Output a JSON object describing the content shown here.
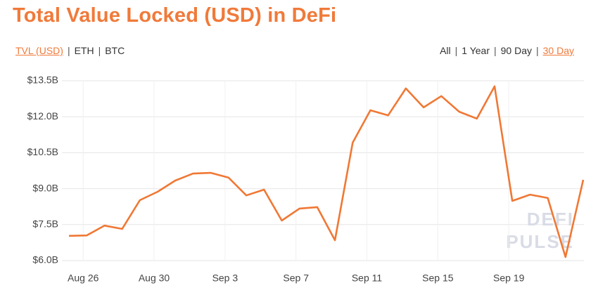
{
  "chart_data": {
    "type": "line",
    "title": "Total Value Locked (USD) in DeFi",
    "tabs": {
      "metric": [
        "TVL (USD)",
        "ETH",
        "BTC"
      ],
      "active_metric": 0,
      "range": [
        "All",
        "1 Year",
        "90 Day",
        "30 Day"
      ],
      "active_range": 3,
      "separator": "|"
    },
    "watermark": [
      "DEFI",
      "PULSE"
    ],
    "categories": [
      null,
      "Aug 26",
      null,
      null,
      null,
      "Aug 30",
      null,
      null,
      null,
      "Sep 3",
      null,
      null,
      null,
      "Sep 7",
      null,
      null,
      null,
      "Sep 11",
      null,
      null,
      null,
      "Sep 15",
      null,
      null,
      null,
      "Sep 19",
      null,
      null,
      null,
      null
    ],
    "series": [
      {
        "name": "TVL (USD)",
        "color": "#f07834",
        "values": [
          7.03,
          7.05,
          7.46,
          7.32,
          8.52,
          8.87,
          9.34,
          9.63,
          9.66,
          9.46,
          8.72,
          8.96,
          7.67,
          8.17,
          8.23,
          6.85,
          10.92,
          12.27,
          12.06,
          13.18,
          12.39,
          12.86,
          12.21,
          11.92,
          13.27,
          8.49,
          8.75,
          8.61,
          6.15,
          9.37
        ]
      }
    ],
    "ylim": [
      6.0,
      13.5
    ],
    "yticks": [
      {
        "value": 6.0,
        "label": "$6.0B"
      },
      {
        "value": 7.5,
        "label": "$7.5B"
      },
      {
        "value": 9.0,
        "label": "$9.0B"
      },
      {
        "value": 10.5,
        "label": "$10.5B"
      },
      {
        "value": 12.0,
        "label": "$12.0B"
      },
      {
        "value": 13.5,
        "label": "$13.5B"
      }
    ],
    "grid": true
  }
}
